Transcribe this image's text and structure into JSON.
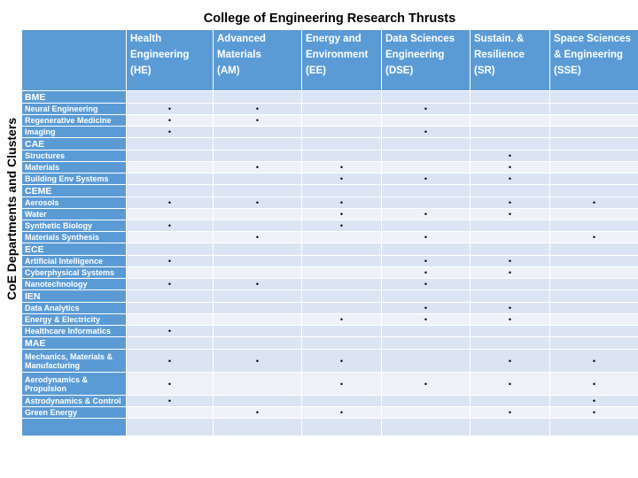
{
  "title": "College of Engineering Research Thrusts",
  "side_label": "CoE Departments and Clusters",
  "dot": "•",
  "columns": [
    {
      "name": "Health Engineering",
      "abbr": "(HE)"
    },
    {
      "name": "Advanced Materials",
      "abbr": "(AM)"
    },
    {
      "name": "Energy and Environment",
      "abbr": "(EE)"
    },
    {
      "name": "Data Sciences Engineering",
      "abbr": "(DSE)"
    },
    {
      "name": "Sustain. & Resilience",
      "abbr": "(SR)"
    },
    {
      "name": "Space Sciences & Engineering",
      "abbr": "(SSE)"
    }
  ],
  "rows": [
    {
      "label": "BME",
      "type": "dept",
      "marks": [
        0,
        0,
        0,
        0,
        0,
        0
      ]
    },
    {
      "label": "Neural Engineering",
      "type": "item",
      "marks": [
        1,
        1,
        0,
        1,
        0,
        0
      ]
    },
    {
      "label": "Regenerative Medicine",
      "type": "item",
      "marks": [
        1,
        1,
        0,
        0,
        0,
        0
      ]
    },
    {
      "label": "Imaging",
      "type": "item",
      "marks": [
        1,
        0,
        0,
        1,
        0,
        0
      ]
    },
    {
      "label": "CAE",
      "type": "dept",
      "marks": [
        0,
        0,
        0,
        0,
        0,
        0
      ]
    },
    {
      "label": "Structures",
      "type": "item",
      "marks": [
        0,
        0,
        0,
        0,
        1,
        0
      ]
    },
    {
      "label": "Materials",
      "type": "item",
      "marks": [
        0,
        1,
        1,
        0,
        1,
        0
      ]
    },
    {
      "label": "Building Env Systems",
      "type": "item",
      "marks": [
        0,
        0,
        1,
        1,
        1,
        0
      ]
    },
    {
      "label": "CEME",
      "type": "dept",
      "marks": [
        0,
        0,
        0,
        0,
        0,
        0
      ]
    },
    {
      "label": "Aerosols",
      "type": "item",
      "marks": [
        1,
        1,
        1,
        0,
        1,
        1
      ]
    },
    {
      "label": "Water",
      "type": "item",
      "marks": [
        0,
        0,
        1,
        1,
        1,
        0
      ]
    },
    {
      "label": "Synthetic Biology",
      "type": "item",
      "marks": [
        1,
        0,
        1,
        0,
        0,
        0
      ]
    },
    {
      "label": "Materials Synthesis",
      "type": "item",
      "marks": [
        0,
        1,
        0,
        1,
        0,
        1
      ]
    },
    {
      "label": "ECE",
      "type": "dept",
      "marks": [
        0,
        0,
        0,
        0,
        0,
        0
      ]
    },
    {
      "label": "Artificial Intelligence",
      "type": "item",
      "marks": [
        1,
        0,
        0,
        1,
        1,
        0
      ]
    },
    {
      "label": "Cyberphysical Systems",
      "type": "item",
      "marks": [
        0,
        0,
        0,
        1,
        1,
        0
      ]
    },
    {
      "label": "Nanotechnology",
      "type": "item",
      "marks": [
        1,
        1,
        0,
        1,
        0,
        0
      ]
    },
    {
      "label": "IEN",
      "type": "dept",
      "marks": [
        0,
        0,
        0,
        0,
        0,
        0
      ]
    },
    {
      "label": "Data Analytics",
      "type": "item",
      "marks": [
        0,
        0,
        0,
        1,
        1,
        0
      ]
    },
    {
      "label": "Energy & Electricity",
      "type": "item",
      "marks": [
        0,
        0,
        1,
        1,
        1,
        0
      ]
    },
    {
      "label": "Healthcare Informatics",
      "type": "item",
      "marks": [
        1,
        0,
        0,
        0,
        0,
        0
      ]
    },
    {
      "label": "MAE",
      "type": "dept",
      "marks": [
        0,
        0,
        0,
        0,
        0,
        0
      ]
    },
    {
      "label": "Mechanics, Materials & Manufacturing",
      "type": "item2",
      "marks": [
        1,
        1,
        1,
        0,
        1,
        1
      ]
    },
    {
      "label": "Aerodynamics & Propulsion",
      "type": "item2",
      "marks": [
        1,
        0,
        1,
        1,
        1,
        1
      ]
    },
    {
      "label": "Astrodynamics & Control",
      "type": "item",
      "marks": [
        1,
        0,
        0,
        0,
        0,
        1
      ]
    },
    {
      "label": "Green Energy",
      "type": "item",
      "marks": [
        0,
        1,
        1,
        0,
        1,
        1
      ]
    },
    {
      "label": "",
      "type": "blank",
      "marks": [
        0,
        0,
        0,
        0,
        0,
        0
      ]
    }
  ]
}
